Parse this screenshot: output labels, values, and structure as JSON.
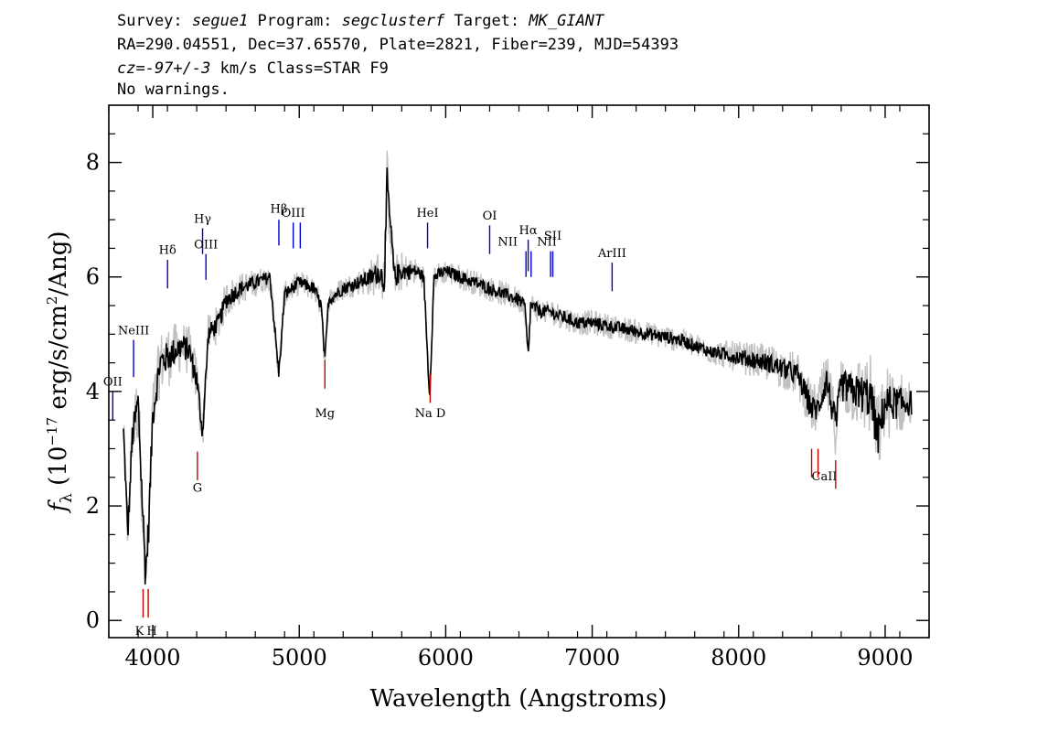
{
  "header": {
    "line1": [
      {
        "text": "Survey: ",
        "italic": false
      },
      {
        "text": "segue1",
        "italic": true
      },
      {
        "text": " Program: ",
        "italic": false
      },
      {
        "text": "segclusterf",
        "italic": true
      },
      {
        "text": " Target: ",
        "italic": false
      },
      {
        "text": "MK_GIANT",
        "italic": true
      }
    ],
    "line2": "RA=290.04551, Dec=37.65570, Plate=2821, Fiber=239, MJD=54393",
    "line3": [
      {
        "text": "cz=-97+/-3",
        "italic": true
      },
      {
        "text": " km/s Class=STAR F9",
        "italic": false
      }
    ],
    "line4": "No warnings."
  },
  "chart_data": {
    "type": "line",
    "xlabel": "Wavelength (Angstroms)",
    "ylabel_parts": {
      "f": "f",
      "sub": "λ",
      "pre": " (10",
      "exp1": "−17",
      "mid": " erg/s/cm",
      "exp2": "2",
      "post": "/Ang)"
    },
    "xlim": [
      3700,
      9300
    ],
    "ylim": [
      -0.3,
      9.0
    ],
    "xticks": [
      4000,
      5000,
      6000,
      7000,
      8000,
      9000
    ],
    "yticks": [
      0,
      2,
      4,
      6,
      8
    ],
    "series": [
      {
        "color": "#000000",
        "x": [
          3800,
          3830,
          3860,
          3900,
          3930,
          3950,
          3970,
          4000,
          4050,
          4101,
          4150,
          4200,
          4250,
          4300,
          4340,
          4380,
          4450,
          4500,
          4600,
          4700,
          4800,
          4861,
          4900,
          4950,
          5000,
          5100,
          5150,
          5175,
          5200,
          5300,
          5400,
          5500,
          5550,
          5580,
          5600,
          5650,
          5700,
          5800,
          5850,
          5890,
          5920,
          6000,
          6100,
          6200,
          6300,
          6400,
          6500,
          6540,
          6563,
          6580,
          6650,
          6700,
          6800,
          6900,
          7000,
          7200,
          7400,
          7600,
          7800,
          8000,
          8200,
          8400,
          8498,
          8542,
          8600,
          8662,
          8700,
          8800,
          8900,
          8950,
          9000,
          9100,
          9180
        ],
        "y": [
          3.3,
          1.5,
          3.2,
          3.8,
          2.0,
          0.8,
          1.5,
          3.6,
          4.5,
          4.6,
          4.7,
          4.8,
          4.7,
          4.2,
          3.3,
          5.0,
          5.2,
          5.6,
          5.8,
          5.9,
          6.0,
          4.3,
          5.7,
          5.8,
          5.9,
          5.8,
          5.5,
          4.5,
          5.6,
          5.8,
          5.9,
          6.0,
          6.1,
          5.9,
          7.6,
          6.0,
          6.1,
          6.1,
          6.0,
          3.9,
          6.0,
          6.1,
          6.0,
          5.9,
          5.8,
          5.7,
          5.6,
          5.5,
          4.6,
          5.5,
          5.4,
          5.4,
          5.3,
          5.2,
          5.2,
          5.1,
          5.0,
          4.9,
          4.7,
          4.6,
          4.5,
          4.3,
          3.7,
          3.7,
          4.2,
          3.4,
          4.1,
          4.0,
          3.9,
          3.2,
          3.8,
          3.8,
          3.8
        ]
      }
    ],
    "error_band": {
      "color": "#c0c0c0",
      "x": [
        3800,
        3900,
        4000,
        4100,
        4200,
        4300,
        4400,
        4500,
        4600,
        4800,
        5000,
        5200,
        5400,
        5580,
        5600,
        5620,
        5800,
        6000,
        6200,
        6400,
        6600,
        6800,
        7000,
        7200,
        7400,
        7600,
        7800,
        8000,
        8200,
        8400,
        8600,
        8800,
        8900,
        9000,
        9100,
        9180
      ],
      "half_width": [
        0.3,
        0.6,
        0.5,
        0.5,
        0.4,
        0.4,
        0.3,
        0.3,
        0.25,
        0.2,
        0.2,
        0.2,
        0.2,
        0.4,
        0.6,
        0.4,
        0.2,
        0.2,
        0.2,
        0.2,
        0.2,
        0.2,
        0.2,
        0.2,
        0.2,
        0.2,
        0.2,
        0.25,
        0.3,
        0.35,
        0.45,
        0.55,
        0.7,
        0.6,
        0.5,
        0.4
      ]
    },
    "emission_lines": [
      {
        "label": "OII",
        "x": 3727,
        "y0": 3.5,
        "y1": 4.0,
        "label_y": 4.1,
        "color": "#0000cc"
      },
      {
        "label": "NeIII",
        "x": 3869,
        "y0": 4.25,
        "y1": 4.9,
        "label_y": 5.0,
        "color": "#0000cc"
      },
      {
        "label": "Hδ",
        "x": 4101,
        "y0": 5.8,
        "y1": 6.3,
        "label_y": 6.4,
        "color": "#0000cc"
      },
      {
        "label": "Hγ",
        "x": 4340,
        "y0": 6.4,
        "y1": 6.85,
        "label_y": 6.95,
        "color": "#0000cc"
      },
      {
        "label": "OIII",
        "x": 4363,
        "y0": 5.95,
        "y1": 6.4,
        "label_y": 6.5,
        "color": "#0000cc"
      },
      {
        "label": "Hβ",
        "x": 4861,
        "y0": 6.55,
        "y1": 7.0,
        "label_y": 7.12,
        "color": "#0000cc"
      },
      {
        "label": "OIII",
        "x": 4959,
        "y0": 6.5,
        "y1": 6.95,
        "label_y": 7.05,
        "color": "#0000cc"
      },
      {
        "label": "",
        "x": 5007,
        "y0": 6.5,
        "y1": 6.95,
        "label_y": 0,
        "color": "#0000cc"
      },
      {
        "label": "HeI",
        "x": 5876,
        "y0": 6.5,
        "y1": 6.95,
        "label_y": 7.05,
        "color": "#0000cc"
      },
      {
        "label": "OI",
        "x": 6300,
        "y0": 6.4,
        "y1": 6.9,
        "label_y": 7.0,
        "color": "#0000cc"
      },
      {
        "label": "NII",
        "x": 6548,
        "y0": 6.0,
        "y1": 6.45,
        "label_y": 6.55,
        "label_dx": -20,
        "color": "#0000cc"
      },
      {
        "label": "Hα",
        "x": 6563,
        "y0": 6.1,
        "y1": 6.65,
        "label_y": 6.75,
        "color": "#0000cc"
      },
      {
        "label": "",
        "x": 6583,
        "y0": 6.0,
        "y1": 6.45,
        "label_y": 0,
        "color": "#0000cc"
      },
      {
        "label": "NII",
        "x": 6716,
        "y0": 6.0,
        "y1": 6.45,
        "label_y": 6.55,
        "label_dx": -4,
        "color": "#0000cc"
      },
      {
        "label": "SII",
        "x": 6731,
        "y0": 6.0,
        "y1": 6.45,
        "label_y": 6.65,
        "label_dx": 0,
        "color": "#0000cc"
      },
      {
        "label": "ArIII",
        "x": 7136,
        "y0": 5.75,
        "y1": 6.25,
        "label_y": 6.35,
        "color": "#0000cc"
      }
    ],
    "absorption_lines": [
      {
        "label": "K",
        "x": 3934,
        "y0": 0.05,
        "y1": 0.55,
        "label_y": -0.25,
        "label_dx": -4,
        "color": "#cc0000"
      },
      {
        "label": "H",
        "x": 3969,
        "y0": 0.05,
        "y1": 0.55,
        "label_y": -0.25,
        "label_dx": 4,
        "color": "#cc0000"
      },
      {
        "label": "G",
        "x": 4305,
        "y0": 2.45,
        "y1": 2.95,
        "label_y": 2.25,
        "color": "#cc0000"
      },
      {
        "label": "Mg",
        "x": 5175,
        "y0": 4.05,
        "y1": 4.55,
        "label_y": 3.55,
        "color": "#cc0000"
      },
      {
        "label": "Na D",
        "x": 5894,
        "y0": 3.8,
        "y1": 4.3,
        "label_y": 3.55,
        "color": "#cc0000"
      },
      {
        "label": "CaII",
        "x": 8498,
        "y0": 2.5,
        "y1": 3.0,
        "label_y": 2.45,
        "label_dx": 14,
        "color": "#cc0000"
      },
      {
        "label": "",
        "x": 8542,
        "y0": 2.5,
        "y1": 3.0,
        "label_y": 0,
        "color": "#cc0000"
      },
      {
        "label": "",
        "x": 8662,
        "y0": 2.3,
        "y1": 2.8,
        "label_y": 0,
        "color": "#cc0000"
      }
    ]
  }
}
